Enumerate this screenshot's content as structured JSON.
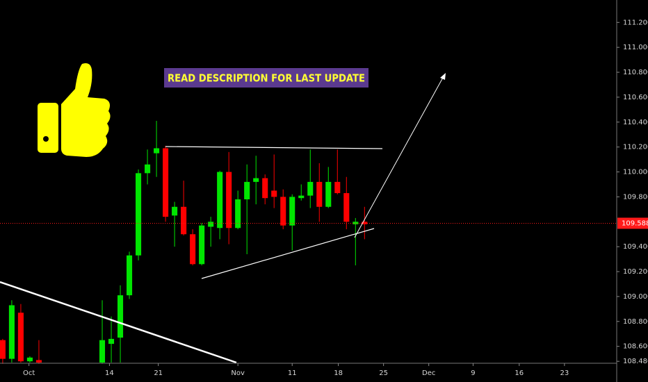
{
  "chart_data": {
    "type": "candlestick",
    "annotation": "READ DESCRIPTION FOR LAST UPDATE",
    "up_color": "#00e600",
    "down_color": "#ff0000",
    "last_price": 109.588,
    "last_price_color": "#ff1a1a",
    "x": [
      0,
      1,
      2,
      3,
      4,
      11,
      12,
      13,
      14,
      15,
      16,
      17,
      18,
      19,
      20,
      21,
      22,
      23,
      24,
      25,
      26,
      27,
      28,
      29,
      30,
      31,
      32,
      33,
      34,
      35,
      36,
      37,
      38,
      39,
      40
    ],
    "open": [
      108.65,
      108.5,
      108.87,
      108.48,
      108.49,
      108.47,
      108.62,
      108.67,
      109.01,
      109.33,
      109.99,
      110.15,
      110.19,
      109.65,
      109.72,
      109.5,
      109.26,
      109.56,
      109.55,
      110.0,
      109.55,
      109.78,
      109.92,
      109.95,
      109.85,
      109.8,
      109.57,
      109.79,
      109.81,
      109.92,
      109.72,
      109.92,
      109.83,
      109.58,
      109.6
    ],
    "high": [
      108.66,
      108.97,
      108.94,
      108.52,
      108.65,
      108.97,
      108.84,
      109.09,
      109.36,
      110.02,
      110.18,
      110.41,
      110.21,
      109.76,
      109.93,
      109.54,
      109.59,
      109.64,
      110.01,
      110.16,
      109.85,
      110.06,
      110.13,
      109.98,
      110.14,
      109.86,
      109.82,
      109.9,
      110.18,
      110.07,
      110.04,
      110.18,
      109.96,
      109.63,
      109.72
    ],
    "low": [
      108.46,
      108.47,
      108.47,
      108.47,
      108.46,
      108.46,
      108.47,
      108.47,
      108.98,
      109.29,
      109.9,
      109.96,
      109.6,
      109.4,
      109.49,
      109.25,
      109.25,
      109.4,
      109.46,
      109.42,
      109.54,
      109.34,
      109.74,
      109.74,
      109.71,
      109.54,
      109.37,
      109.77,
      109.71,
      109.6,
      109.71,
      109.82,
      109.54,
      109.25,
      109.46
    ],
    "close": [
      108.5,
      108.93,
      108.48,
      108.51,
      108.47,
      108.65,
      108.66,
      109.01,
      109.33,
      109.99,
      110.06,
      110.19,
      109.64,
      109.72,
      109.5,
      109.26,
      109.57,
      109.6,
      110.0,
      109.55,
      109.78,
      109.92,
      109.95,
      109.79,
      109.8,
      109.57,
      109.8,
      109.81,
      109.92,
      109.72,
      109.92,
      109.83,
      109.6,
      109.6,
      109.58
    ],
    "xlim": [
      -0.3,
      67.8
    ],
    "xticks": [
      {
        "value": 2.9,
        "label": "Oct"
      },
      {
        "value": 11.8,
        "label": "14"
      },
      {
        "value": 17.2,
        "label": "21"
      },
      {
        "value": 26,
        "label": "Nov"
      },
      {
        "value": 32,
        "label": "11"
      },
      {
        "value": 37.1,
        "label": "18"
      },
      {
        "value": 42.1,
        "label": "25"
      },
      {
        "value": 47.1,
        "label": "Dec"
      },
      {
        "value": 52,
        "label": "9"
      },
      {
        "value": 57.1,
        "label": "16"
      },
      {
        "value": 62.1,
        "label": "23"
      }
    ],
    "ylim": [
      108.47,
      111.38
    ],
    "yticks": [
      {
        "value": 111.2,
        "label": "111.200"
      },
      {
        "value": 111.0,
        "label": "111.000"
      },
      {
        "value": 110.8,
        "label": "110.800"
      },
      {
        "value": 110.6,
        "label": "110.600"
      },
      {
        "value": 110.4,
        "label": "110.400"
      },
      {
        "value": 110.2,
        "label": "110.200"
      },
      {
        "value": 110.0,
        "label": "110.000"
      },
      {
        "value": 109.8,
        "label": "109.800"
      },
      {
        "value": 109.4,
        "label": "109.400"
      },
      {
        "value": 109.2,
        "label": "109.200"
      },
      {
        "value": 109.0,
        "label": "109.000"
      },
      {
        "value": 108.8,
        "label": "108.800"
      },
      {
        "value": 108.6,
        "label": "108.600"
      },
      {
        "value": 108.48,
        "label": "108.480"
      }
    ]
  }
}
